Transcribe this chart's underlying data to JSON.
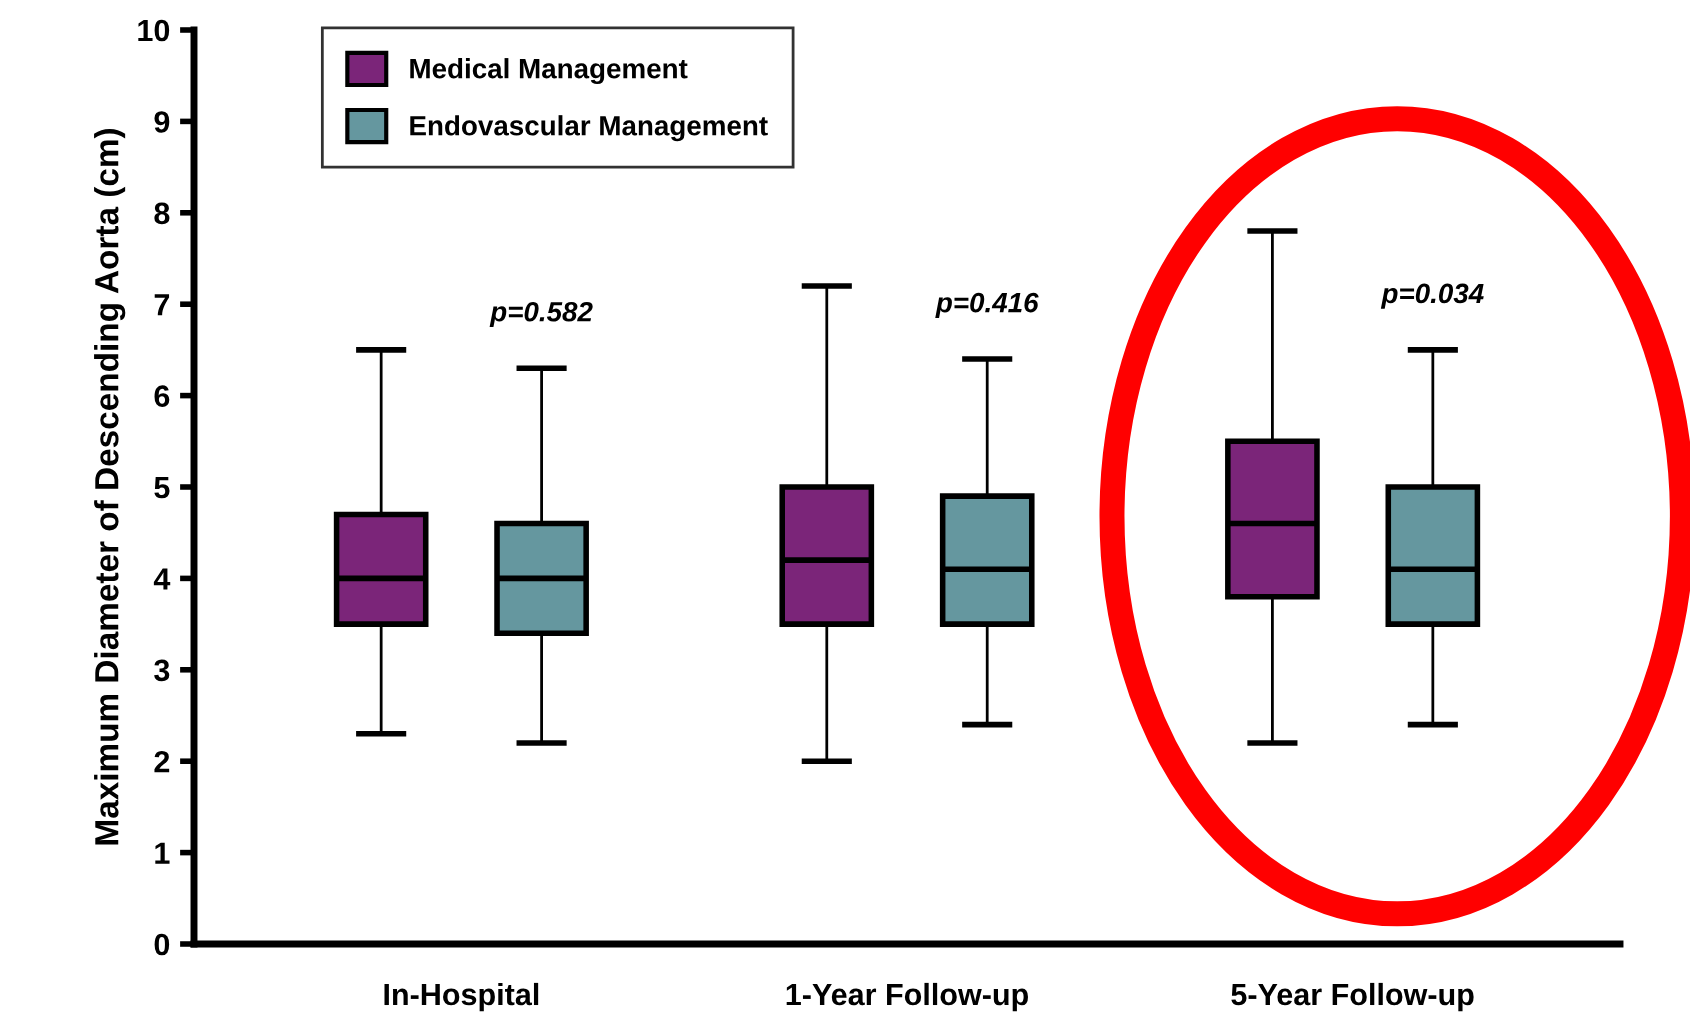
{
  "chart_data": {
    "type": "box",
    "ylabel": "Maximum Diameter of Descending Aorta (cm)",
    "categories": [
      "In-Hospital",
      "1-Year Follow-up",
      "5-Year Follow-up"
    ],
    "ylim": [
      0,
      10
    ],
    "yticks": [
      0,
      1,
      2,
      3,
      4,
      5,
      6,
      7,
      8,
      9,
      10
    ],
    "grid": false,
    "legend": "top left",
    "series": [
      {
        "name": "Medical Management",
        "color": "#7b2579",
        "boxes": [
          {
            "low": 2.3,
            "q1": 3.5,
            "median": 4.0,
            "q3": 4.7,
            "high": 6.5
          },
          {
            "low": 2.0,
            "q1": 3.5,
            "median": 4.2,
            "q3": 5.0,
            "high": 7.2
          },
          {
            "low": 2.2,
            "q1": 3.8,
            "median": 4.6,
            "q3": 5.5,
            "high": 7.8
          }
        ]
      },
      {
        "name": "Endovascular Management",
        "color": "#65979f",
        "boxes": [
          {
            "low": 2.2,
            "q1": 3.4,
            "median": 4.0,
            "q3": 4.6,
            "high": 6.3
          },
          {
            "low": 2.4,
            "q1": 3.5,
            "median": 4.1,
            "q3": 4.9,
            "high": 6.4
          },
          {
            "low": 2.4,
            "q1": 3.5,
            "median": 4.1,
            "q3": 5.0,
            "high": 6.5
          }
        ]
      }
    ],
    "annotations": [
      "p=0.582",
      "p=0.416",
      "p=0.034"
    ]
  }
}
